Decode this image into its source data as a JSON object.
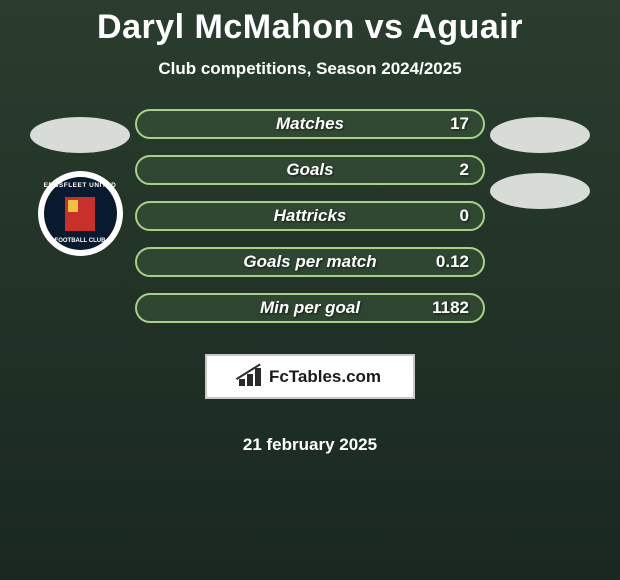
{
  "title": "Daryl McMahon vs Aguair",
  "subtitle": "Club competitions, Season 2024/2025",
  "date": "21 february 2025",
  "site_badge": {
    "text": "FcTables.com"
  },
  "club_badge": {
    "top_text": "EBBSFLEET UNITED",
    "bottom_text": "FOOTBALL CLUB",
    "outer_color": "#ffffff",
    "inner_color": "#0a1a2e",
    "center_color": "#c8302c",
    "accent_color": "#f0c040"
  },
  "colors": {
    "title_color": "#ffffff",
    "background_top": "#2a3d2e",
    "background_bottom": "#1a2820",
    "pill_border": "#a8d088",
    "pill_fill": "rgba(60,90,60,0.5)",
    "placeholder": "#d8dcd6",
    "badge_bg": "#ffffff",
    "badge_border": "#c8c8c8"
  },
  "typography": {
    "title_fontsize": 34,
    "subtitle_fontsize": 17,
    "stat_label_fontsize": 17,
    "stat_value_fontsize": 17,
    "date_fontsize": 17,
    "badge_fontsize": 17,
    "title_weight": 900,
    "label_weight": 900
  },
  "layout": {
    "stat_pill_width": 350,
    "stat_pill_height": 30,
    "stat_gap": 16,
    "placeholder_width": 100,
    "placeholder_height": 36
  },
  "stats": [
    {
      "label": "Matches",
      "value": "17"
    },
    {
      "label": "Goals",
      "value": "2"
    },
    {
      "label": "Hattricks",
      "value": "0"
    },
    {
      "label": "Goals per match",
      "value": "0.12"
    },
    {
      "label": "Min per goal",
      "value": "1182"
    }
  ]
}
